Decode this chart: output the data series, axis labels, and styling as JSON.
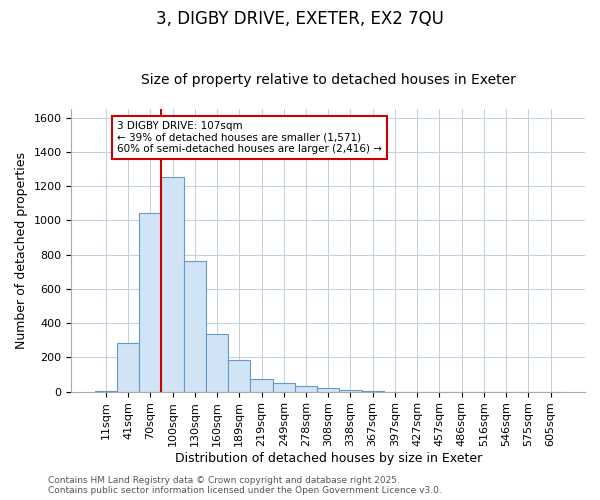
{
  "title_line1": "3, DIGBY DRIVE, EXETER, EX2 7QU",
  "title_line2": "Size of property relative to detached houses in Exeter",
  "xlabel": "Distribution of detached houses by size in Exeter",
  "ylabel": "Number of detached properties",
  "categories": [
    "11sqm",
    "41sqm",
    "70sqm",
    "100sqm",
    "130sqm",
    "160sqm",
    "189sqm",
    "219sqm",
    "249sqm",
    "278sqm",
    "308sqm",
    "338sqm",
    "367sqm",
    "397sqm",
    "427sqm",
    "457sqm",
    "486sqm",
    "516sqm",
    "546sqm",
    "575sqm",
    "605sqm"
  ],
  "values": [
    5,
    285,
    1040,
    1255,
    760,
    335,
    185,
    75,
    48,
    35,
    20,
    10,
    5,
    0,
    0,
    0,
    0,
    0,
    0,
    0,
    0
  ],
  "bar_color": "#d0e4f5",
  "bar_edge_color": "#6699cc",
  "red_line_index": 3,
  "red_line_color": "#cc0000",
  "ylim": [
    0,
    1650
  ],
  "yticks": [
    0,
    200,
    400,
    600,
    800,
    1000,
    1200,
    1400,
    1600
  ],
  "annotation_text": "3 DIGBY DRIVE: 107sqm\n← 39% of detached houses are smaller (1,571)\n60% of semi-detached houses are larger (2,416) →",
  "annotation_box_facecolor": "#ffffff",
  "annotation_box_edgecolor": "#cc0000",
  "grid_color": "#c0d0e0",
  "bg_color": "#ffffff",
  "plot_bg_color": "#ffffff",
  "footnote": "Contains HM Land Registry data © Crown copyright and database right 2025.\nContains public sector information licensed under the Open Government Licence v3.0.",
  "title1_fontsize": 12,
  "title2_fontsize": 10,
  "xlabel_fontsize": 9,
  "ylabel_fontsize": 9,
  "tick_fontsize": 8,
  "footnote_fontsize": 6.5
}
